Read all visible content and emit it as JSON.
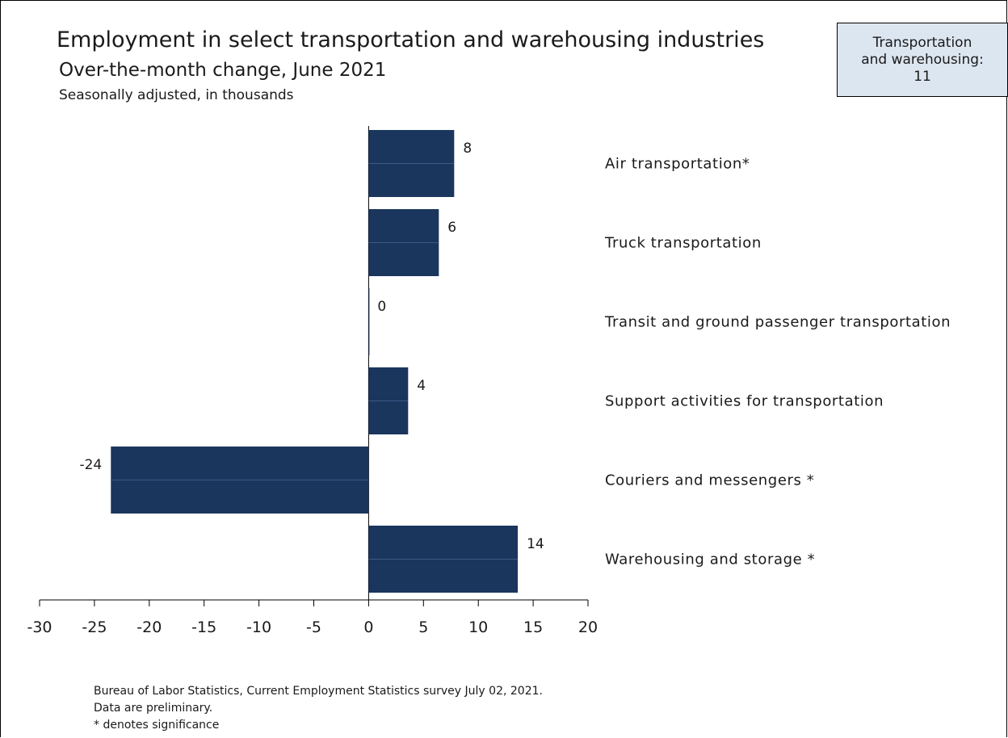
{
  "title": "Employment in select transportation and warehousing industries",
  "subtitle": "Over-the-month change, June 2021",
  "note": "Seasonally adjusted, in thousands",
  "callout": {
    "line1": "Transportation",
    "line2": "and warehousing:",
    "value": "11"
  },
  "footer": {
    "source": "Bureau of Labor Statistics, Current Employment Statistics survey July 02, 2021.",
    "preliminary": "Data are preliminary.",
    "significance": "* denotes significance"
  },
  "colors": {
    "bar": "#1b365d",
    "callout_bg": "#dce6f1"
  },
  "chart_data": {
    "type": "bar",
    "orientation": "horizontal",
    "categories": [
      "Air transportation*",
      "Truck transportation",
      "Transit and ground passenger transportation",
      "Support activities for transportation",
      "Couriers and messengers *",
      "Warehousing and storage *"
    ],
    "values": [
      7.8,
      6.4,
      0,
      3.6,
      -23.5,
      13.6
    ],
    "data_labels": [
      "8",
      "6",
      "0",
      "4",
      "-24",
      "14"
    ],
    "xlim": [
      -30,
      20
    ],
    "xticks": [
      -30,
      -25,
      -20,
      -15,
      -10,
      -5,
      0,
      5,
      10,
      15,
      20
    ],
    "xtick_labels": [
      "-30",
      "-25",
      "-20",
      "-15",
      "-10",
      "-5",
      "0",
      "5",
      "10",
      "15",
      "20"
    ],
    "grid": false,
    "legend": "none"
  }
}
